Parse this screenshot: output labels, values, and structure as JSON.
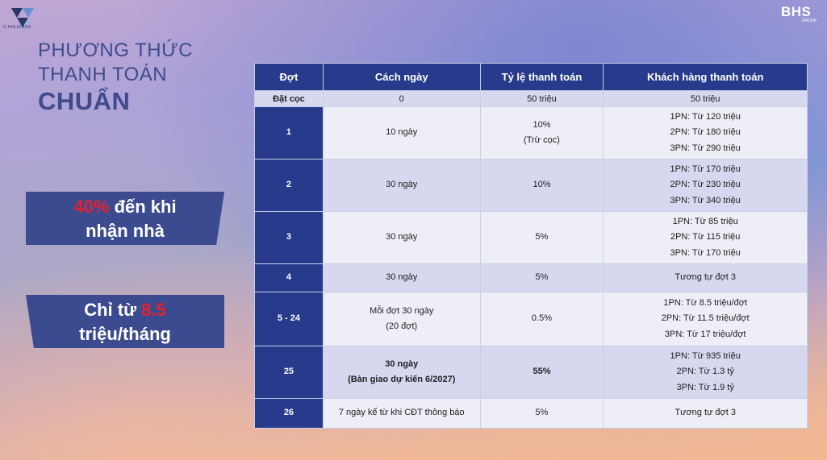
{
  "brand": {
    "left_logo_text": "C-HOLDINGS",
    "right_logo_main": "BHS",
    "right_logo_sub": "GROUP",
    "accent": "#283a8c",
    "highlight": "#e8202a"
  },
  "heading": {
    "line1": "PHƯƠNG THỨC",
    "line2": "THANH TOÁN",
    "line3": "CHUẨN"
  },
  "callout1": {
    "highlight": "40%",
    "text1": " đến khi",
    "text2": "nhận nhà"
  },
  "callout2": {
    "text1": "Chỉ từ ",
    "highlight": "8.5",
    "text2": "triệu/tháng"
  },
  "table": {
    "headers": [
      "Đợt",
      "Cách ngày",
      "Tỷ lệ thanh toán",
      "Khách hàng thanh toán"
    ],
    "deposit": {
      "label": "Đặt cọc",
      "days": "0",
      "ratio": "50 triệu",
      "customer": "50 triệu"
    },
    "rows": [
      {
        "stage": "1",
        "days": [
          "10 ngày"
        ],
        "ratio": [
          "10%",
          "(Trừ cọc)"
        ],
        "customer": [
          "1PN: Từ 120 triệu",
          "2PN: Từ 180 triệu",
          "3PN: Từ 290 triệu"
        ]
      },
      {
        "stage": "2",
        "days": [
          "30 ngày"
        ],
        "ratio": [
          "10%"
        ],
        "customer": [
          "1PN: Từ 170 triệu",
          "2PN: Từ 230 triệu",
          "3PN: Từ 340 triệu"
        ]
      },
      {
        "stage": "3",
        "days": [
          "30 ngày"
        ],
        "ratio": [
          "5%"
        ],
        "customer": [
          "1PN: Từ 85 triệu",
          "2PN: Từ 115 triệu",
          "3PN: Từ 170 triệu"
        ]
      },
      {
        "stage": "4",
        "days": [
          "30 ngày"
        ],
        "ratio": [
          "5%"
        ],
        "customer": [
          "Tương tự đợt 3"
        ]
      },
      {
        "stage": "5 - 24",
        "days": [
          "Mỗi đợt 30 ngày",
          "(20 đợt)"
        ],
        "ratio": [
          "0.5%"
        ],
        "customer": [
          "1PN: Từ 8.5 triệu/đợt",
          "2PN: Từ 11.5 triệu/đợt",
          "3PN: Từ 17 triệu/đợt"
        ]
      },
      {
        "stage": "25",
        "days": [
          "30 ngày",
          "(Bàn giao dự kiến 6/2027)"
        ],
        "ratio": [
          "55%"
        ],
        "customer": [
          "1PN: Từ 935 triệu",
          "2PN: Từ 1.3 tỷ",
          "3PN: Từ 1.9 tỷ"
        ]
      },
      {
        "stage": "26",
        "days": [
          "7 ngày kể từ khi CĐT thông báo"
        ],
        "ratio": [
          "5%"
        ],
        "customer": [
          "Tương tự đợt 3"
        ]
      }
    ]
  }
}
